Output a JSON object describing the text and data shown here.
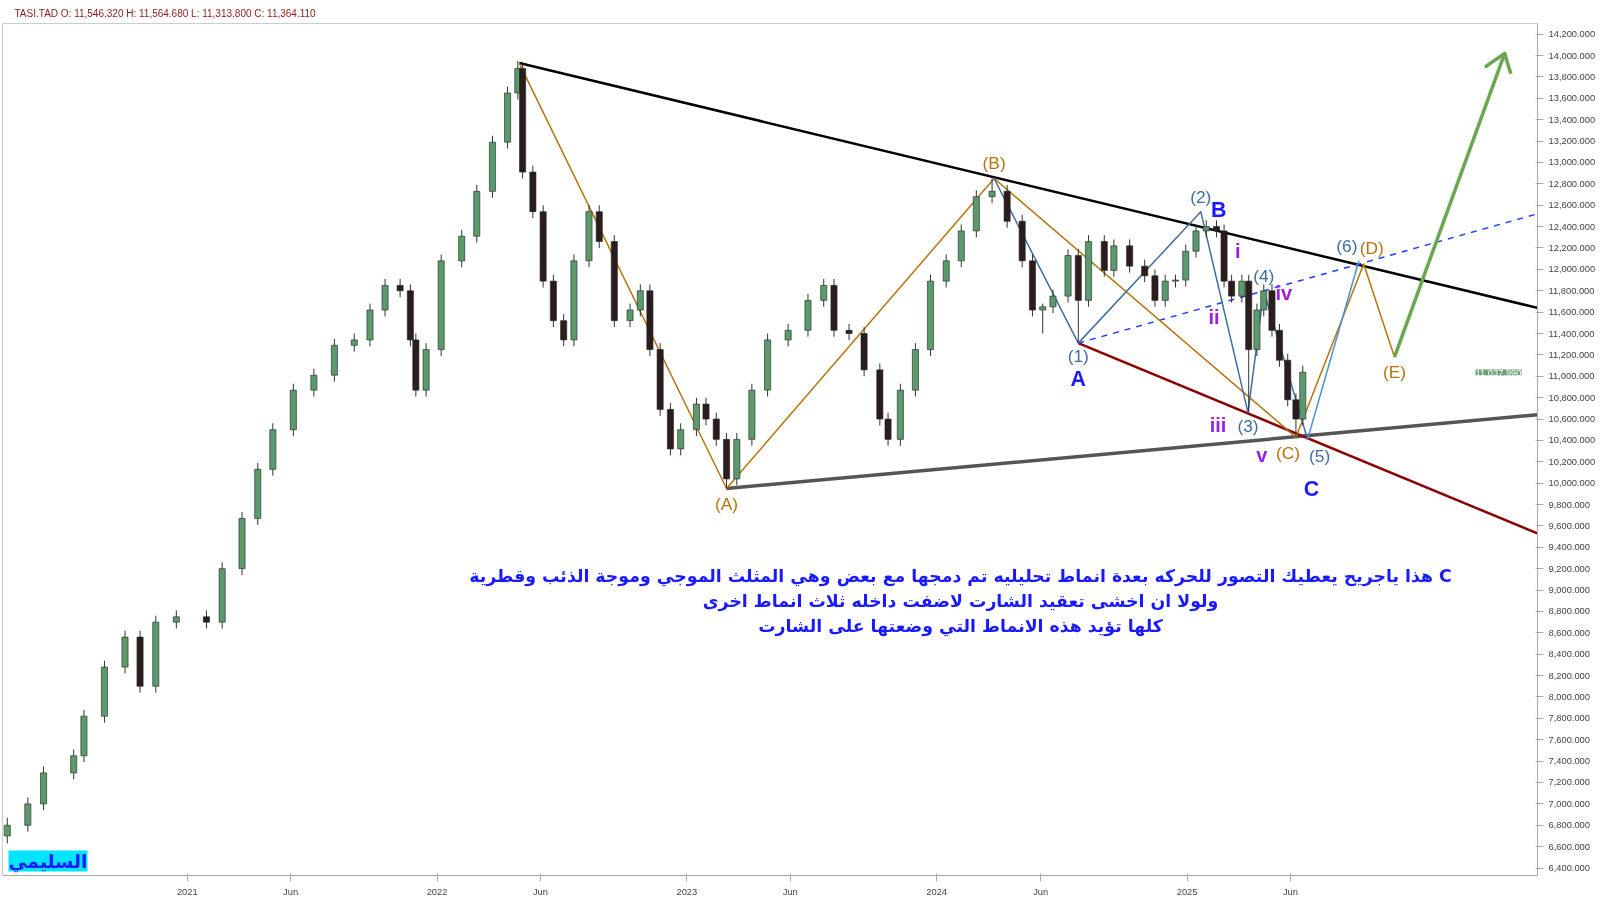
{
  "chart_data": {
    "type": "candlestick",
    "title": "TASI.TAD  O: 11,546.320  H: 11,564.680  L: 11,313.800  C: 11,364.110",
    "x": [
      "2020-04-13",
      "2020-05-13",
      "2020-06-05",
      "2020-07-19",
      "2020-08-03",
      "2020-09-02",
      "2020-10-02",
      "2020-10-24",
      "2020-11-16",
      "2020-12-16",
      "2021-01-29",
      "2021-02-21",
      "2021-03-22",
      "2021-04-14",
      "2021-05-06",
      "2021-06-05",
      "2021-07-05",
      "2021-08-04",
      "2021-09-02",
      "2021-09-25",
      "2021-10-17",
      "2021-11-08",
      "2021-11-23",
      "2021-12-01",
      "2021-12-16",
      "2022-01-07",
      "2022-02-06",
      "2022-02-28",
      "2022-03-23",
      "2022-04-14",
      "2022-04-29",
      "2022-05-06",
      "2022-05-21",
      "2022-06-05",
      "2022-06-20",
      "2022-07-05",
      "2022-07-20",
      "2022-08-11",
      "2022-08-26",
      "2022-09-17",
      "2022-10-10",
      "2022-10-25",
      "2022-11-08",
      "2022-11-23",
      "2022-12-08",
      "2022-12-23",
      "2023-01-15",
      "2023-01-29",
      "2023-02-13",
      "2023-02-28",
      "2023-03-15",
      "2023-04-06",
      "2023-04-29",
      "2023-05-29",
      "2023-06-27",
      "2023-07-20",
      "2023-08-04",
      "2023-08-26",
      "2023-09-17",
      "2023-10-10",
      "2023-10-22",
      "2023-11-09",
      "2023-12-01",
      "2023-12-23",
      "2024-01-15",
      "2024-02-06",
      "2024-02-28",
      "2024-03-22",
      "2024-04-13",
      "2024-05-05",
      "2024-05-20",
      "2024-06-04",
      "2024-06-19",
      "2024-07-11",
      "2024-07-26",
      "2024-08-10",
      "2024-09-02",
      "2024-09-16",
      "2024-10-09",
      "2024-10-31",
      "2024-11-15",
      "2024-11-30",
      "2024-12-15",
      "2024-12-30",
      "2025-01-14",
      "2025-01-29",
      "2025-02-13",
      "2025-02-24",
      "2025-03-07",
      "2025-03-22",
      "2025-04-01",
      "2025-04-13",
      "2025-04-23",
      "2025-05-05",
      "2025-05-16",
      "2025-05-28",
      "2025-06-09",
      "2025-06-19"
    ],
    "ohlc": [
      [
        6700,
        6870,
        6630,
        6800
      ],
      [
        6800,
        7060,
        6740,
        7000
      ],
      [
        7000,
        7350,
        6940,
        7290
      ],
      [
        7290,
        7510,
        7230,
        7450
      ],
      [
        7450,
        7880,
        7390,
        7820
      ],
      [
        7820,
        8340,
        7760,
        8280
      ],
      [
        8280,
        8620,
        8220,
        8560
      ],
      [
        8560,
        8620,
        8040,
        8100
      ],
      [
        8100,
        8760,
        8040,
        8700
      ],
      [
        8700,
        8810,
        8640,
        8750
      ],
      [
        8750,
        8810,
        8640,
        8700
      ],
      [
        8700,
        9260,
        8640,
        9200
      ],
      [
        9200,
        9730,
        9140,
        9670
      ],
      [
        9670,
        10190,
        9610,
        10130
      ],
      [
        10130,
        10560,
        10070,
        10500
      ],
      [
        10500,
        10930,
        10440,
        10870
      ],
      [
        10870,
        11070,
        10810,
        11010
      ],
      [
        11010,
        11350,
        10950,
        11290
      ],
      [
        11290,
        11400,
        11230,
        11340
      ],
      [
        11340,
        11680,
        11280,
        11620
      ],
      [
        11620,
        11910,
        11560,
        11850
      ],
      [
        11850,
        11910,
        11740,
        11800
      ],
      [
        11800,
        11860,
        11280,
        11340
      ],
      [
        11340,
        11400,
        10810,
        10870
      ],
      [
        10870,
        11310,
        10810,
        11250
      ],
      [
        11250,
        12140,
        11190,
        12080
      ],
      [
        12080,
        12370,
        12020,
        12310
      ],
      [
        12310,
        12790,
        12250,
        12730
      ],
      [
        12730,
        13250,
        12670,
        13190
      ],
      [
        13190,
        13710,
        13130,
        13650
      ],
      [
        13650,
        13950,
        13590,
        13880
      ],
      [
        13880,
        13940,
        12850,
        12910
      ],
      [
        12910,
        12970,
        12480,
        12540
      ],
      [
        12540,
        12600,
        11830,
        11890
      ],
      [
        11890,
        11950,
        11460,
        11520
      ],
      [
        11520,
        11580,
        11280,
        11340
      ],
      [
        11340,
        12140,
        11280,
        12080
      ],
      [
        12080,
        12600,
        12020,
        12540
      ],
      [
        12540,
        12600,
        12200,
        12260
      ],
      [
        12260,
        12320,
        11460,
        11520
      ],
      [
        11520,
        11680,
        11460,
        11620
      ],
      [
        11620,
        11860,
        11560,
        11800
      ],
      [
        11800,
        11860,
        11190,
        11250
      ],
      [
        11250,
        11310,
        10630,
        10690
      ],
      [
        10690,
        10750,
        10260,
        10320
      ],
      [
        10320,
        10560,
        10260,
        10500
      ],
      [
        10500,
        10800,
        10440,
        10740
      ],
      [
        10740,
        10800,
        10540,
        10600
      ],
      [
        10600,
        10660,
        10350,
        10410
      ],
      [
        10410,
        10470,
        9950,
        10040
      ],
      [
        10040,
        10470,
        9980,
        10410
      ],
      [
        10410,
        10930,
        10350,
        10870
      ],
      [
        10870,
        11400,
        10810,
        11340
      ],
      [
        11340,
        11490,
        11280,
        11430
      ],
      [
        11430,
        11770,
        11370,
        11710
      ],
      [
        11710,
        11910,
        11650,
        11850
      ],
      [
        11850,
        11910,
        11370,
        11430
      ],
      [
        11430,
        11490,
        11340,
        11400
      ],
      [
        11400,
        11460,
        11000,
        11060
      ],
      [
        11060,
        11120,
        10540,
        10600
      ],
      [
        10600,
        10660,
        10350,
        10410
      ],
      [
        10410,
        10930,
        10350,
        10870
      ],
      [
        10870,
        11310,
        10810,
        11250
      ],
      [
        11250,
        11950,
        11190,
        11890
      ],
      [
        11890,
        12140,
        11830,
        12080
      ],
      [
        12080,
        12420,
        12020,
        12360
      ],
      [
        12360,
        12740,
        12300,
        12680
      ],
      [
        12680,
        12850,
        12620,
        12730
      ],
      [
        12730,
        12790,
        12390,
        12450
      ],
      [
        12450,
        12510,
        12020,
        12080
      ],
      [
        12080,
        12140,
        11560,
        11620
      ],
      [
        11620,
        11680,
        11400,
        11650
      ],
      [
        11650,
        11810,
        11590,
        11750
      ],
      [
        11750,
        12190,
        11690,
        12130
      ],
      [
        12130,
        12190,
        11310,
        11710
      ],
      [
        11710,
        12320,
        11650,
        12260
      ],
      [
        12260,
        12320,
        11930,
        11990
      ],
      [
        11990,
        12280,
        11930,
        12220
      ],
      [
        12220,
        12280,
        11970,
        12030
      ],
      [
        12030,
        12090,
        11880,
        11940
      ],
      [
        11940,
        12000,
        11650,
        11710
      ],
      [
        11710,
        11950,
        11650,
        11890
      ],
      [
        11890,
        11950,
        11830,
        11900
      ],
      [
        11900,
        12230,
        11840,
        12170
      ],
      [
        12170,
        12420,
        12110,
        12360
      ],
      [
        12360,
        12460,
        12300,
        12400
      ],
      [
        12400,
        12460,
        12300,
        12360
      ],
      [
        12360,
        12420,
        11830,
        11890
      ],
      [
        11890,
        11950,
        11690,
        11750
      ],
      [
        11750,
        11950,
        11690,
        11890
      ],
      [
        11890,
        11950,
        10660,
        11250
      ],
      [
        11250,
        11680,
        11190,
        11620
      ],
      [
        11620,
        11860,
        11560,
        11800
      ],
      [
        11800,
        11860,
        11370,
        11430
      ],
      [
        11430,
        11490,
        11090,
        11150
      ],
      [
        11150,
        11210,
        10720,
        10780
      ],
      [
        10780,
        10840,
        10430,
        10600
      ],
      [
        10600,
        11100,
        10540,
        11037.99
      ]
    ],
    "colors": [
      "#5b9a6d",
      "#5b9a6d",
      "#5b9a6d",
      "#5b9a6d",
      "#5b9a6d",
      "#5b9a6d",
      "#5b9a6d",
      "#2b1d1d",
      "#5b9a6d",
      "#5b9a6d",
      "#2b1d1d",
      "#5b9a6d",
      "#5b9a6d",
      "#5b9a6d",
      "#5b9a6d",
      "#5b9a6d",
      "#5b9a6d",
      "#5b9a6d",
      "#5b9a6d",
      "#5b9a6d",
      "#5b9a6d",
      "#2b1d1d",
      "#2b1d1d",
      "#2b1d1d",
      "#5b9a6d",
      "#5b9a6d",
      "#5b9a6d",
      "#5b9a6d",
      "#5b9a6d",
      "#5b9a6d",
      "#5b9a6d",
      "#2b1d1d",
      "#2b1d1d",
      "#2b1d1d",
      "#2b1d1d",
      "#2b1d1d",
      "#5b9a6d",
      "#5b9a6d",
      "#2b1d1d",
      "#2b1d1d",
      "#5b9a6d",
      "#5b9a6d",
      "#2b1d1d",
      "#2b1d1d",
      "#2b1d1d",
      "#5b9a6d",
      "#5b9a6d",
      "#2b1d1d",
      "#2b1d1d",
      "#2b1d1d",
      "#5b9a6d",
      "#5b9a6d",
      "#5b9a6d",
      "#5b9a6d",
      "#5b9a6d",
      "#5b9a6d",
      "#2b1d1d",
      "#2b1d1d",
      "#2b1d1d",
      "#2b1d1d",
      "#2b1d1d",
      "#5b9a6d",
      "#5b9a6d",
      "#5b9a6d",
      "#5b9a6d",
      "#5b9a6d",
      "#5b9a6d",
      "#5b9a6d",
      "#2b1d1d",
      "#2b1d1d",
      "#2b1d1d",
      "#5b9a6d",
      "#5b9a6d",
      "#5b9a6d",
      "#2b1d1d",
      "#5b9a6d",
      "#2b1d1d",
      "#5b9a6d",
      "#2b1d1d",
      "#2b1d1d",
      "#2b1d1d",
      "#5b9a6d",
      "#5b9a6d",
      "#5b9a6d",
      "#5b9a6d",
      "#5b9a6d",
      "#2b1d1d",
      "#2b1d1d",
      "#2b1d1d",
      "#5b9a6d",
      "#2b1d1d",
      "#5b9a6d",
      "#5b9a6d",
      "#2b1d1d",
      "#2b1d1d",
      "#2b1d1d",
      "#2b1d1d",
      "#5b9a6d"
    ],
    "series": [
      {
        "type": "line",
        "color": "#000000",
        "x": [
          "2022-05-01",
          "2026-05-28"
        ],
        "values": [
          13930,
          11640
        ]
      },
      {
        "type": "line",
        "color": "#555555",
        "x": [
          "2023-02-28",
          "2026-05-28"
        ],
        "values": [
          9950,
          10640
        ]
      },
      {
        "type": "line",
        "color": "#8b0000",
        "x": [
          "2024-07-26",
          "2026-05-28"
        ],
        "values": [
          11310,
          9530
        ]
      },
      {
        "type": "line",
        "color": "#1f3fff",
        "line_style": "dashed",
        "x": [
          "2024-07-26",
          "2026-05-28"
        ],
        "values": [
          11310,
          12520
        ]
      },
      {
        "type": "line",
        "color": "#b8730a",
        "x": [
          "2022-05-01",
          "2023-02-28",
          "2024-03-25",
          "2025-06-09",
          "2025-09-16",
          "2025-10-31"
        ],
        "values": [
          13930,
          9950,
          12850,
          10430,
          12050,
          11180
        ]
      },
      {
        "type": "line",
        "color": "#3d6e9e",
        "x": [
          "2024-03-25",
          "2024-07-26",
          "2025-01-21",
          "2025-03-31",
          "2025-04-23",
          "2025-06-26"
        ],
        "values": [
          12850,
          11310,
          12540,
          10660,
          11800,
          10410
        ]
      },
      {
        "type": "line",
        "color": "#4a90d0",
        "x": [
          "2025-06-26",
          "2025-09-09"
        ],
        "values": [
          10410,
          12080
        ]
      },
      {
        "type": "line",
        "color": "#6aa84f",
        "x": [
          "2025-10-31",
          "2026-04-10",
          "2026-03-14",
          "2026-04-10",
          "2026-04-19"
        ],
        "values": [
          11180,
          14020,
          13900,
          14020,
          13830
        ]
      }
    ],
    "xlim": [
      "2020-04-06",
      "2026-05-28"
    ],
    "xticks": [
      {
        "value": "2021-01-01",
        "label": "2021"
      },
      {
        "value": "2021-06-01",
        "label": "Jun"
      },
      {
        "value": "2022-01-01",
        "label": "2022"
      },
      {
        "value": "2022-06-01",
        "label": "Jun"
      },
      {
        "value": "2023-01-01",
        "label": "2023"
      },
      {
        "value": "2023-06-01",
        "label": "Jun"
      },
      {
        "value": "2024-01-01",
        "label": "2024"
      },
      {
        "value": "2024-06-01",
        "label": "Jun"
      },
      {
        "value": "2025-01-01",
        "label": "2025"
      },
      {
        "value": "2025-06-01",
        "label": "Jun"
      }
    ],
    "ylim": [
      6330,
      14300
    ],
    "yticks": [
      {
        "value": 6400,
        "label": "6,400.000"
      },
      {
        "value": 6600,
        "label": "6,600.000"
      },
      {
        "value": 6800,
        "label": "6,800.000"
      },
      {
        "value": 7000,
        "label": "7,000.000"
      },
      {
        "value": 7200,
        "label": "7,200.000"
      },
      {
        "value": 7400,
        "label": "7,400.000"
      },
      {
        "value": 7600,
        "label": "7,600.000"
      },
      {
        "value": 7800,
        "label": "7,800.000"
      },
      {
        "value": 8000,
        "label": "8,000.000"
      },
      {
        "value": 8200,
        "label": "8,200.000"
      },
      {
        "value": 8400,
        "label": "8,400.000"
      },
      {
        "value": 8600,
        "label": "8,600.000"
      },
      {
        "value": 8800,
        "label": "8,800.000"
      },
      {
        "value": 9000,
        "label": "9,000.000"
      },
      {
        "value": 9200,
        "label": "9,200.000"
      },
      {
        "value": 9400,
        "label": "9,400.000"
      },
      {
        "value": 9600,
        "label": "9,600.000"
      },
      {
        "value": 9800,
        "label": "9,800.000"
      },
      {
        "value": 10000,
        "label": "10,000.000"
      },
      {
        "value": 10200,
        "label": "10,200.000"
      },
      {
        "value": 10400,
        "label": "10,400.000"
      },
      {
        "value": 10600,
        "label": "10,600.000"
      },
      {
        "value": 10800,
        "label": "10,800.000"
      },
      {
        "value": 11000,
        "label": "11,000.000"
      },
      {
        "value": 11200,
        "label": "11,200.000"
      },
      {
        "value": 11400,
        "label": "11,400.000"
      },
      {
        "value": 11600,
        "label": "11,600.000"
      },
      {
        "value": 11800,
        "label": "11,800.000"
      },
      {
        "value": 12000,
        "label": "12,000.000"
      },
      {
        "value": 12200,
        "label": "12,200.000"
      },
      {
        "value": 12400,
        "label": "12,400.000"
      },
      {
        "value": 12600,
        "label": "12,600.000"
      },
      {
        "value": 12800,
        "label": "12,800.000"
      },
      {
        "value": 13000,
        "label": "13,000.000"
      },
      {
        "value": 13200,
        "label": "13,200.000"
      },
      {
        "value": 13400,
        "label": "13,400.000"
      },
      {
        "value": 13600,
        "label": "13,600.000"
      },
      {
        "value": 13800,
        "label": "13,800.000"
      },
      {
        "value": 14000,
        "label": "14,000.000"
      },
      {
        "value": 14200,
        "label": "14,200.000"
      }
    ],
    "annotations": [
      {
        "text": "(A)",
        "x": "2023-02-28",
        "y": 9950
      },
      {
        "text": "(B)",
        "x": "2024-03-25",
        "y": 12850
      },
      {
        "text": "(C)",
        "x": "2025-06-09",
        "y": 10430
      },
      {
        "text": "(D)",
        "x": "2025-09-16",
        "y": 12050
      },
      {
        "text": "(E)",
        "x": "2025-10-31",
        "y": 11180
      },
      {
        "text": "(1)",
        "x": "2024-07-26",
        "y": 11310
      },
      {
        "text": "(2)",
        "x": "2025-01-21",
        "y": 12540
      },
      {
        "text": "(3)",
        "x": "2025-03-31",
        "y": 10660
      },
      {
        "text": "(4)",
        "x": "2025-04-23",
        "y": 11800
      },
      {
        "text": "(5)",
        "x": "2025-06-26",
        "y": 10410
      },
      {
        "text": "(6)",
        "x": "2025-09-09",
        "y": 12080
      },
      {
        "text": "A",
        "x": "2024-07-26",
        "y": 11310
      },
      {
        "text": "B",
        "x": "2025-01-21",
        "y": 12540
      },
      {
        "text": "C",
        "x": "2025-06-26",
        "y": 10410
      },
      {
        "text": "i",
        "x": "2025-04-23",
        "y": 11800
      },
      {
        "text": "ii",
        "x": "2025-02-24",
        "y": 11610
      },
      {
        "text": "iii",
        "x": "2025-03-31",
        "y": 10660
      },
      {
        "text": "iv",
        "x": "2025-04-23",
        "y": 11800
      },
      {
        "text": "v",
        "x": "2025-06-09",
        "y": 10430
      },
      "11,037.990",
      "هذا ياجريح يعطيك التصور للحركه بعدة انماط تحليليه تم دمجها مع بعض وهي المثلث الموجي وموجة الذئب وقطرية C",
      "ولولا ان اخشى تعقيد الشارت لاضفت داخله ثلاث انماط اخرى",
      "كلها تؤيد هذه الانماط التي وضعتها على الشارت",
      "السليمي"
    ]
  }
}
